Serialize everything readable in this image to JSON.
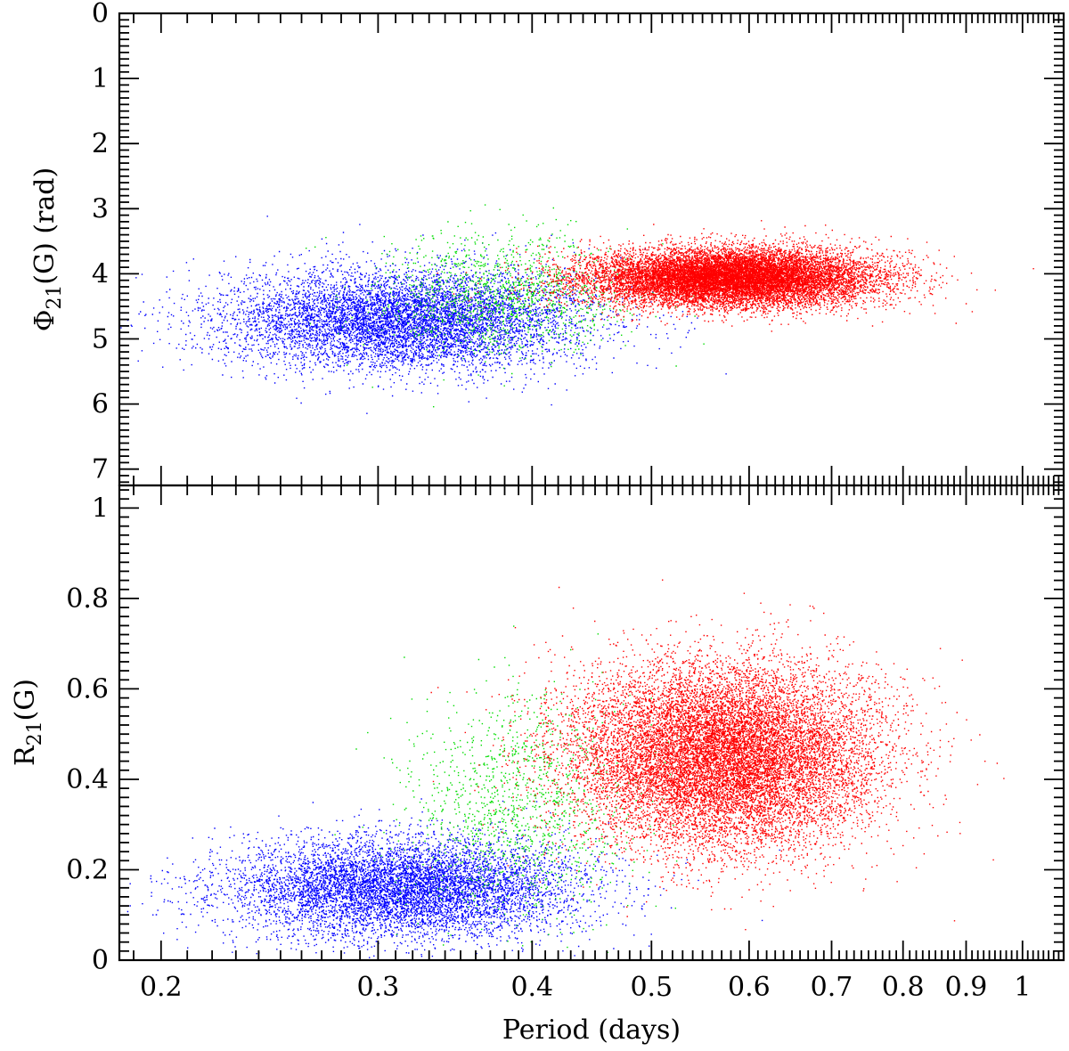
{
  "colors": {
    "blue_class": "#0000ff",
    "green_class": "#00dd00",
    "red_class": "#ff0000",
    "frame": "#000000"
  },
  "chart_data": [
    {
      "panel": "top",
      "type": "scatter",
      "title": "",
      "xlabel": "",
      "ylabel_main": "Φ",
      "ylabel_sub": "21",
      "ylabel_rest": "(G)  (rad)",
      "x_scale": "log",
      "xlim": [
        0.185,
        1.08
      ],
      "ylim": [
        7.25,
        0
      ],
      "y_inverted": true,
      "yticks": [
        "0",
        "1",
        "2",
        "3",
        "4",
        "5",
        "6",
        "7"
      ],
      "grid": false,
      "series": [
        {
          "color": "blue",
          "center_period": 0.315,
          "center_value": 4.7,
          "spread_period_log": 0.072,
          "spread_value": 0.38,
          "approx_points": 7500
        },
        {
          "color": "green",
          "center_period": 0.38,
          "center_value": 4.3,
          "spread_period_log": 0.05,
          "spread_value": 0.45,
          "approx_points": 1300
        },
        {
          "color": "red",
          "center_period": 0.58,
          "center_value": 4.05,
          "spread_period_log": 0.058,
          "spread_value": 0.22,
          "approx_points": 14000
        }
      ]
    },
    {
      "panel": "bottom",
      "type": "scatter",
      "title": "",
      "xlabel": "Period (days)",
      "ylabel_main": "R",
      "ylabel_sub": "21",
      "ylabel_rest": "(G)",
      "x_scale": "log",
      "xlim": [
        0.185,
        1.08
      ],
      "ylim": [
        0,
        1.05
      ],
      "yticks": [
        "0",
        "0.2",
        "0.4",
        "0.6",
        "0.8",
        "1"
      ],
      "xticks": [
        "0.2",
        "0.3",
        "0.4",
        "0.5",
        "0.6",
        "0.7",
        "0.8",
        "0.9",
        "1"
      ],
      "grid": false,
      "series": [
        {
          "color": "blue",
          "center_period": 0.315,
          "center_value": 0.16,
          "spread_period_log": 0.07,
          "spread_value": 0.055,
          "approx_points": 7500
        },
        {
          "color": "green",
          "center_period": 0.39,
          "center_value": 0.35,
          "spread_period_log": 0.045,
          "spread_value": 0.12,
          "approx_points": 1300
        },
        {
          "color": "red",
          "center_period": 0.57,
          "center_value": 0.45,
          "spread_period_log": 0.062,
          "spread_value": 0.1,
          "approx_points": 14000
        }
      ]
    }
  ]
}
